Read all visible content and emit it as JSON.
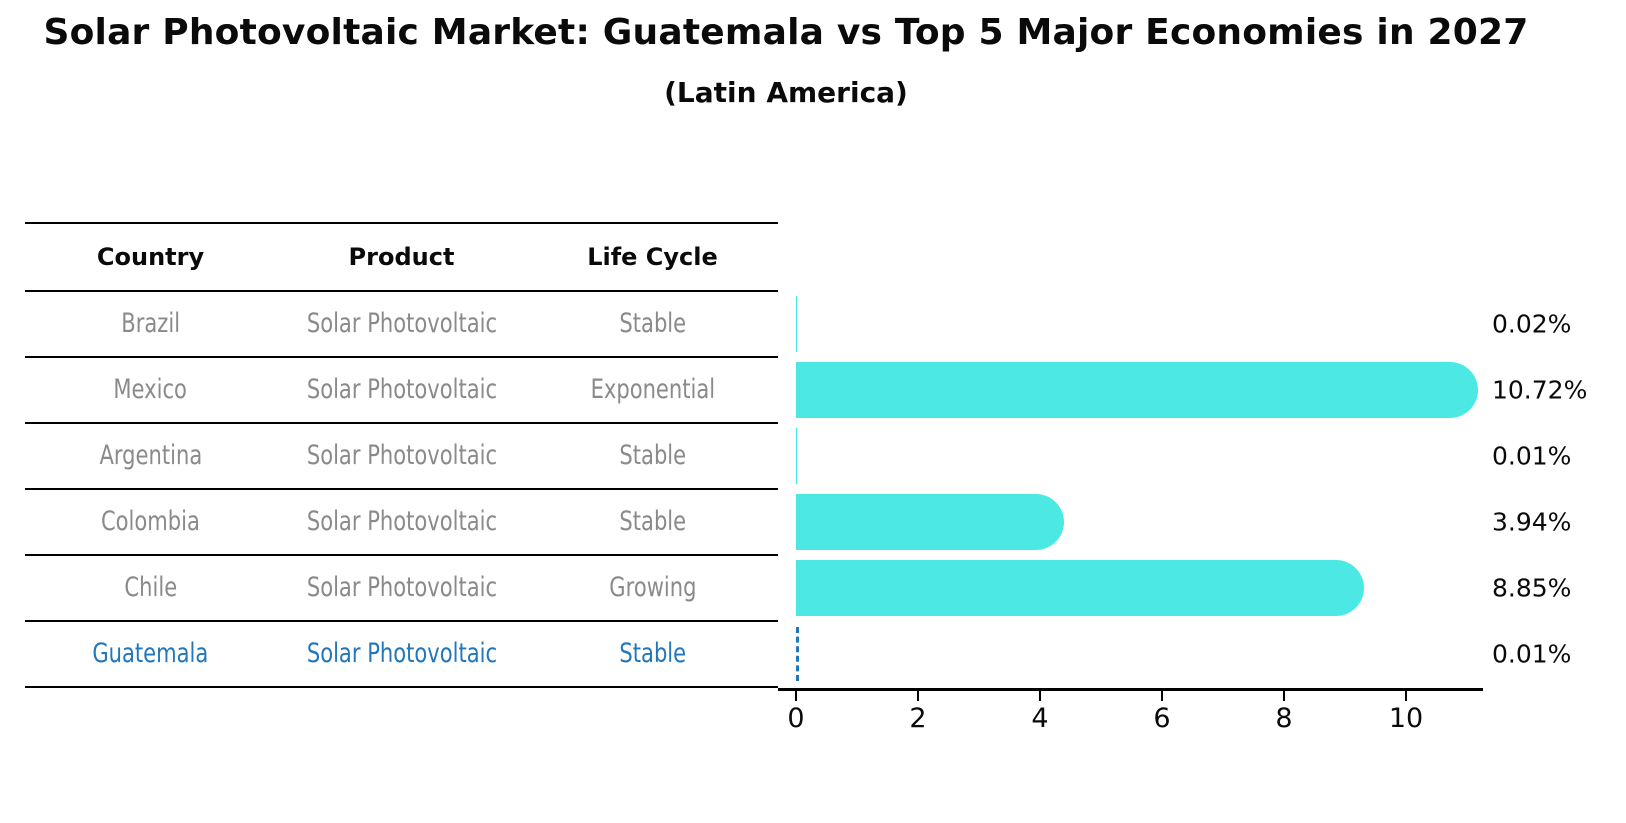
{
  "header": {
    "title": "Solar Photovoltaic Market: Guatemala vs Top 5 Major Economies in 2027",
    "subtitle": "(Latin America)"
  },
  "table": {
    "columns": [
      "Country",
      "Product",
      "Life Cycle"
    ],
    "rows": [
      {
        "country": "Brazil",
        "product": "Solar Photovoltaic",
        "life_cycle": "Stable",
        "highlight": false
      },
      {
        "country": "Mexico",
        "product": "Solar Photovoltaic",
        "life_cycle": "Exponential",
        "highlight": false
      },
      {
        "country": "Argentina",
        "product": "Solar Photovoltaic",
        "life_cycle": "Stable",
        "highlight": false
      },
      {
        "country": "Colombia",
        "product": "Solar Photovoltaic",
        "life_cycle": "Stable",
        "highlight": false
      },
      {
        "country": "Chile",
        "product": "Solar Photovoltaic",
        "life_cycle": "Growing",
        "highlight": false
      },
      {
        "country": "Guatemala",
        "product": "Solar Photovoltaic",
        "life_cycle": "Stable",
        "highlight": true
      }
    ]
  },
  "chart_data": {
    "type": "bar",
    "orientation": "horizontal",
    "title": "Solar Photovoltaic Market: Guatemala vs Top 5 Major Economies in 2027",
    "subtitle": "(Latin America)",
    "categories": [
      "Brazil",
      "Mexico",
      "Argentina",
      "Colombia",
      "Chile",
      "Guatemala"
    ],
    "values": [
      0.02,
      10.72,
      0.01,
      3.94,
      8.85,
      0.01
    ],
    "value_labels": [
      "0.02%",
      "10.72%",
      "0.01%",
      "3.94%",
      "8.85%",
      "0.01%"
    ],
    "unit": "percent",
    "xlabel": "",
    "ylabel": "",
    "xticks": [
      "0",
      "2",
      "4",
      "6",
      "8",
      "10"
    ],
    "xtick_values": [
      0,
      2,
      4,
      6,
      8,
      10
    ],
    "xlim": [
      0,
      11.25
    ],
    "grid": false,
    "legend": "none",
    "bar_color": "#4ce9e4",
    "highlight_color": "#2277bb",
    "highlighted_category": "Guatemala",
    "highlight_bar_style": "dashed-outline"
  },
  "colors": {
    "bar": "#4ce9e4",
    "highlight": "#2277bb",
    "muted_text": "#8a8a8a",
    "strong_text": "#0a0a0a",
    "line": "#000000"
  }
}
